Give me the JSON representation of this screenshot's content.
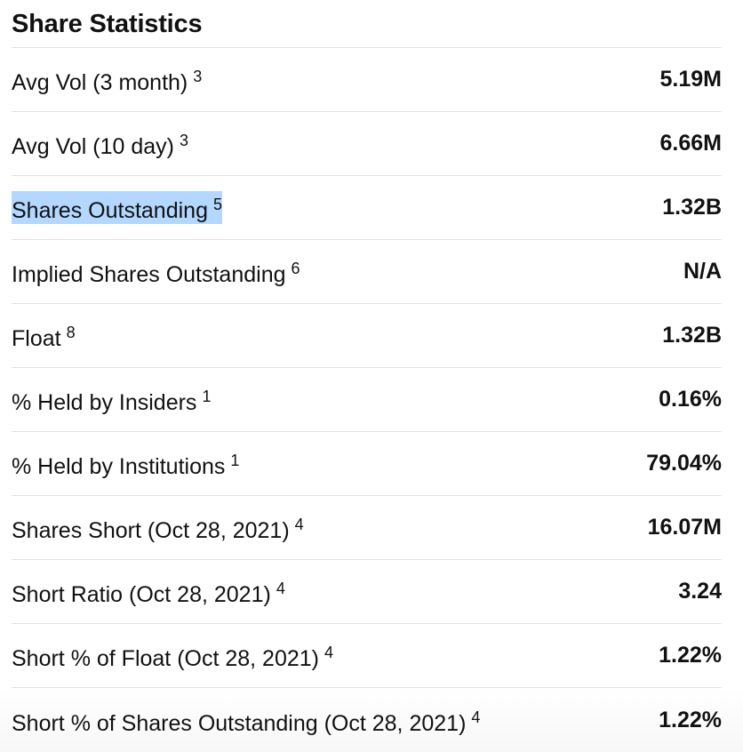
{
  "section": {
    "title": "Share Statistics"
  },
  "rows": [
    {
      "label": "Avg Vol (3 month)",
      "footnote": "3",
      "value": "5.19M"
    },
    {
      "label": "Avg Vol (10 day)",
      "footnote": "3",
      "value": "6.66M"
    },
    {
      "label": "Shares Outstanding",
      "footnote": "5",
      "value": "1.32B",
      "selected": true
    },
    {
      "label": "Implied Shares Outstanding",
      "footnote": "6",
      "value": "N/A"
    },
    {
      "label": "Float",
      "footnote": "8",
      "value": "1.32B"
    },
    {
      "label": "% Held by Insiders",
      "footnote": "1",
      "value": "0.16%"
    },
    {
      "label": "% Held by Institutions",
      "footnote": "1",
      "value": "79.04%"
    },
    {
      "label": "Shares Short (Oct 28, 2021)",
      "footnote": "4",
      "value": "16.07M"
    },
    {
      "label": "Short Ratio (Oct 28, 2021)",
      "footnote": "4",
      "value": "3.24"
    },
    {
      "label": "Short % of Float (Oct 28, 2021)",
      "footnote": "4",
      "value": "1.22%"
    },
    {
      "label": "Short % of Shares Outstanding (Oct 28, 2021)",
      "footnote": "4",
      "value": "1.22%"
    }
  ],
  "colors": {
    "selection_highlight": "#b3d7ff",
    "divider": "#e3e4e6",
    "text": "#111111"
  }
}
